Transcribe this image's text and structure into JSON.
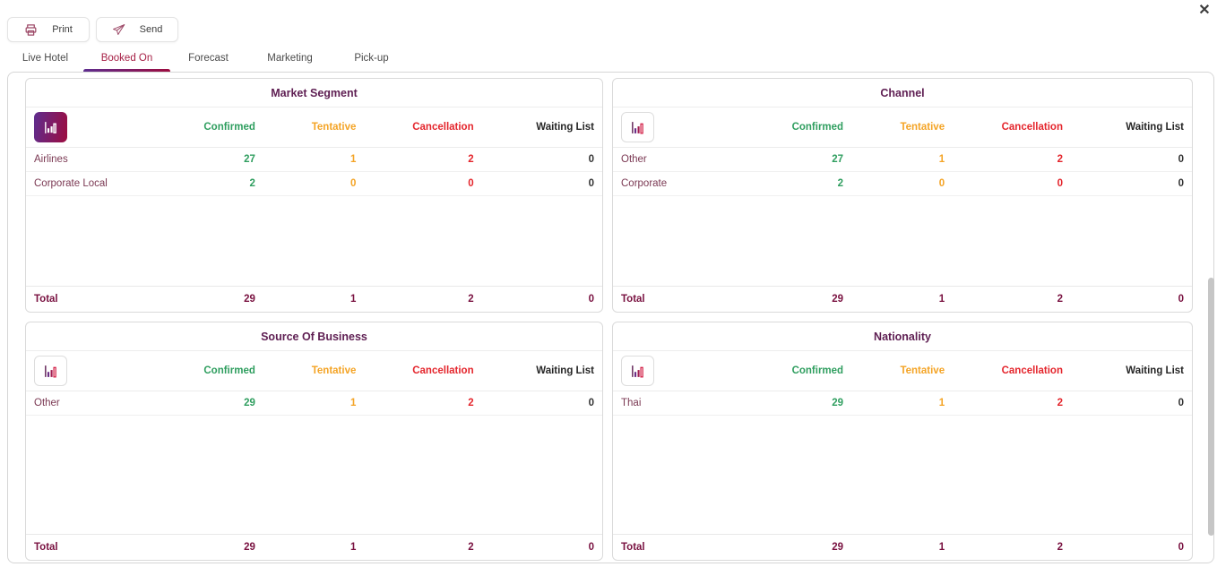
{
  "window": {
    "close_icon": "✕"
  },
  "toolbar": {
    "print": {
      "label": "Print",
      "icon": "printer-icon"
    },
    "send": {
      "label": "Send",
      "icon": "paper-plane-icon"
    }
  },
  "tabs": [
    {
      "label": "Live Hotel",
      "active": false
    },
    {
      "label": "Booked On",
      "active": true
    },
    {
      "label": "Forecast",
      "active": false
    },
    {
      "label": "Marketing",
      "active": false
    },
    {
      "label": "Pick-up",
      "active": false
    }
  ],
  "table_columns": [
    "Confirmed",
    "Tentative",
    "Cancellation",
    "Waiting List"
  ],
  "panels": [
    {
      "title": "Market Segment",
      "icon": "bar-chart-icon",
      "icon_active": true,
      "rows": [
        {
          "label": "Airlines",
          "values": [
            "27",
            "1",
            "2",
            "0"
          ]
        },
        {
          "label": "Corporate Local",
          "values": [
            "2",
            "0",
            "0",
            "0"
          ]
        }
      ],
      "total": {
        "label": "Total",
        "values": [
          "29",
          "1",
          "2",
          "0"
        ]
      }
    },
    {
      "title": "Channel",
      "icon": "bar-chart-icon",
      "icon_active": false,
      "rows": [
        {
          "label": "Other",
          "values": [
            "27",
            "1",
            "2",
            "0"
          ]
        },
        {
          "label": "Corporate",
          "values": [
            "2",
            "0",
            "0",
            "0"
          ]
        }
      ],
      "total": {
        "label": "Total",
        "values": [
          "29",
          "1",
          "2",
          "0"
        ]
      }
    },
    {
      "title": "Source Of Business",
      "icon": "bar-chart-icon",
      "icon_active": false,
      "rows": [
        {
          "label": "Other",
          "values": [
            "29",
            "1",
            "2",
            "0"
          ]
        }
      ],
      "total": {
        "label": "Total",
        "values": [
          "29",
          "1",
          "2",
          "0"
        ]
      }
    },
    {
      "title": "Nationality",
      "icon": "bar-chart-icon",
      "icon_active": false,
      "rows": [
        {
          "label": "Thai",
          "values": [
            "29",
            "1",
            "2",
            "0"
          ]
        }
      ],
      "total": {
        "label": "Total",
        "values": [
          "29",
          "1",
          "2",
          "0"
        ]
      }
    }
  ],
  "colors": {
    "confirmed": "#2f9e5f",
    "tentative": "#f4a426",
    "cancellation": "#e4252c",
    "waiting": "#262626",
    "row_label": "#7b3953",
    "title": "#5e1e52",
    "total": "#791140",
    "tab_active": "#a51e44",
    "gradient_start": "#5e2d8f",
    "gradient_end": "#9d0c3f",
    "icon_stroke": "#9d4a68"
  }
}
